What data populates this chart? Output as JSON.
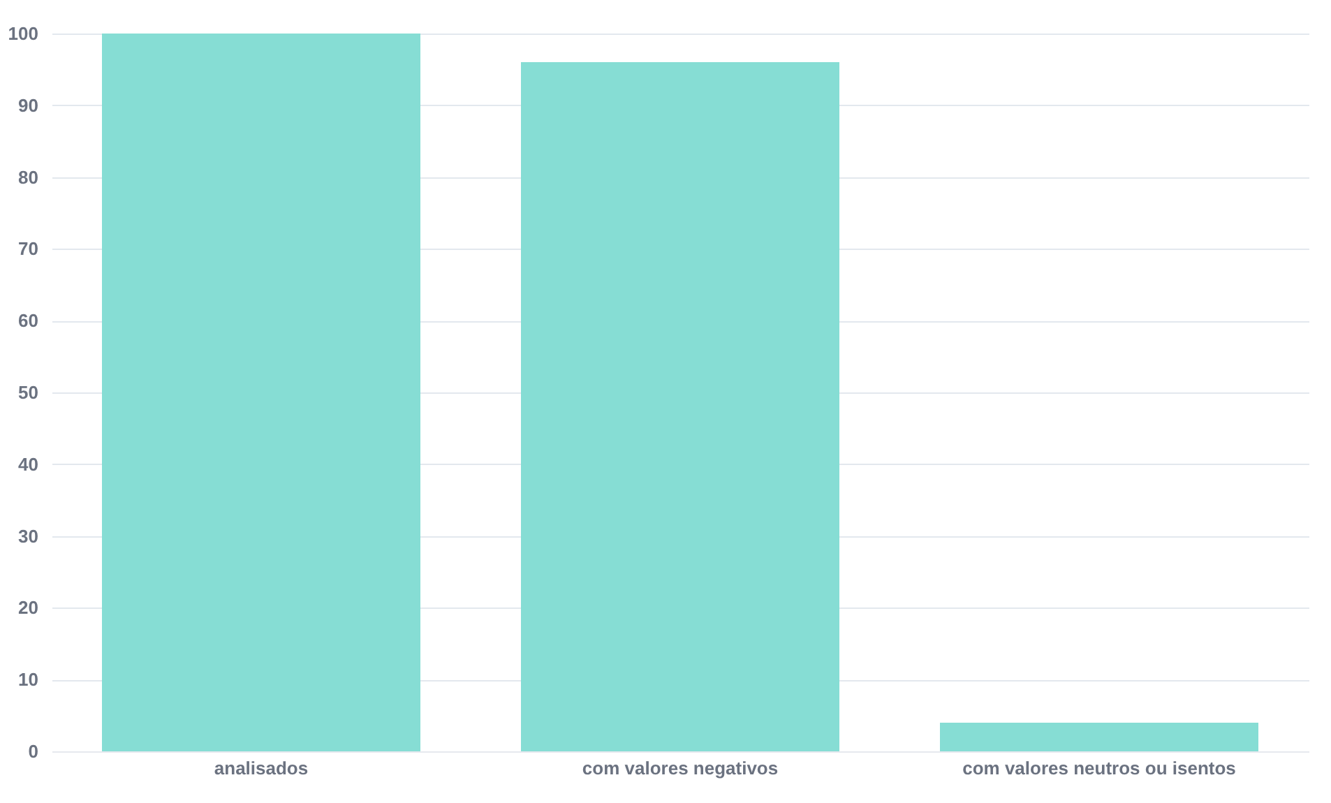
{
  "chart_data": {
    "type": "bar",
    "categories": [
      "analisados",
      "com valores negativos",
      "com valores neutros ou isentos"
    ],
    "values": [
      100,
      96,
      4
    ],
    "color": "#86ddd4",
    "ylim": [
      0,
      100
    ],
    "yticks": [
      0,
      10,
      20,
      30,
      40,
      50,
      60,
      70,
      80,
      90,
      100
    ],
    "grid": "y"
  }
}
